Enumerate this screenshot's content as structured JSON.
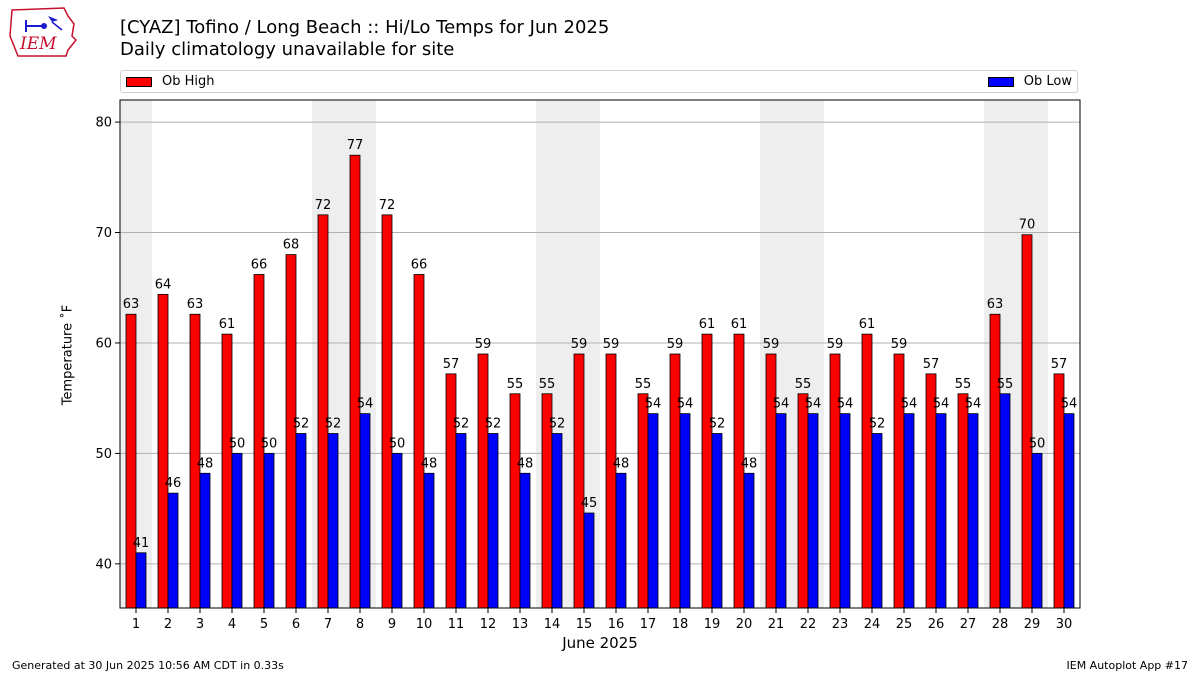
{
  "header": {
    "title": "[CYAZ] Tofino / Long Beach :: Hi/Lo Temps for Jun 2025",
    "subtitle": "Daily climatology unavailable for site"
  },
  "logo": {
    "text": "IEM",
    "icon": "iowa-state-weather-logo"
  },
  "legend": {
    "high_label": "Ob High",
    "low_label": "Ob Low",
    "placement": "top"
  },
  "footer": {
    "generated": "Generated at 30 Jun 2025 10:56 AM CDT in 0.33s",
    "app": "IEM Autoplot App #17"
  },
  "colors": {
    "high": "#ff0000",
    "low": "#0000ff",
    "weekend_band": "#eeeeee",
    "grid": "#b0b0b0"
  },
  "chart_data": {
    "type": "bar",
    "title": "[CYAZ] Tofino / Long Beach :: Hi/Lo Temps for Jun 2025",
    "subtitle": "Daily climatology unavailable for site",
    "xlabel": "June 2025",
    "ylabel": "Temperature ˚F",
    "ylim": [
      36,
      82
    ],
    "yticks": [
      40,
      50,
      60,
      70,
      80
    ],
    "grid": true,
    "categories": [
      "1",
      "2",
      "3",
      "4",
      "5",
      "6",
      "7",
      "8",
      "9",
      "10",
      "11",
      "12",
      "13",
      "14",
      "15",
      "16",
      "17",
      "18",
      "19",
      "20",
      "21",
      "22",
      "23",
      "24",
      "25",
      "26",
      "27",
      "28",
      "29",
      "30"
    ],
    "weekend_days": [
      1,
      7,
      8,
      14,
      15,
      21,
      22,
      28,
      29
    ],
    "series": [
      {
        "name": "Ob High",
        "values": [
          62.6,
          64.4,
          62.6,
          60.8,
          66.2,
          68.0,
          71.6,
          77.0,
          71.6,
          66.2,
          57.2,
          59.0,
          55.4,
          55.4,
          59.0,
          59.0,
          55.4,
          59.0,
          60.8,
          60.8,
          59.0,
          55.4,
          59.0,
          60.8,
          59.0,
          57.2,
          55.4,
          62.6,
          69.8,
          57.2
        ],
        "labels": [
          "63",
          "64",
          "63",
          "61",
          "66",
          "68",
          "72",
          "77",
          "72",
          "66",
          "57",
          "59",
          "55",
          "55",
          "59",
          "59",
          "55",
          "59",
          "61",
          "61",
          "59",
          "55",
          "59",
          "61",
          "59",
          "57",
          "55",
          "63",
          "70",
          "57"
        ]
      },
      {
        "name": "Ob Low",
        "values": [
          41.0,
          46.4,
          48.2,
          50.0,
          50.0,
          51.8,
          51.8,
          53.6,
          50.0,
          48.2,
          51.8,
          51.8,
          48.2,
          51.8,
          44.6,
          48.2,
          53.6,
          53.6,
          51.8,
          48.2,
          53.6,
          53.6,
          53.6,
          51.8,
          53.6,
          53.6,
          53.6,
          55.4,
          50.0,
          53.6
        ],
        "labels": [
          "41",
          "46",
          "48",
          "50",
          "50",
          "52",
          "52",
          "54",
          "50",
          "48",
          "52",
          "52",
          "48",
          "52",
          "45",
          "48",
          "54",
          "54",
          "52",
          "48",
          "54",
          "54",
          "54",
          "52",
          "54",
          "54",
          "54",
          "55",
          "50",
          "54"
        ]
      }
    ]
  }
}
